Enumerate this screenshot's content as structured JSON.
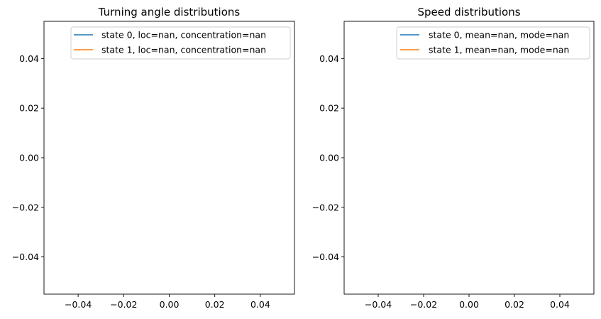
{
  "chart_data": [
    {
      "type": "line",
      "title": "Turning angle distributions",
      "xlabel": "",
      "ylabel": "",
      "xlim": [
        -0.055,
        0.055
      ],
      "ylim": [
        -0.055,
        0.055
      ],
      "xticks": [
        -0.04,
        -0.02,
        0.0,
        0.02,
        0.04
      ],
      "xtick_labels": [
        "−0.04",
        "−0.02",
        "0.00",
        "0.02",
        "0.04"
      ],
      "yticks": [
        0.04,
        0.02,
        0.0,
        -0.02,
        -0.04
      ],
      "ytick_labels": [
        "0.04",
        "0.02",
        "0.00",
        "−0.02",
        "−0.04"
      ],
      "grid": false,
      "legend_position": "top-right",
      "series": [
        {
          "name": "state 0, loc=nan, concentration=nan",
          "color": "#1f77b4",
          "values": []
        },
        {
          "name": "state 1, loc=nan, concentration=nan",
          "color": "#ff7f0e",
          "values": []
        }
      ]
    },
    {
      "type": "line",
      "title": "Speed distributions",
      "xlabel": "",
      "ylabel": "",
      "xlim": [
        -0.055,
        0.055
      ],
      "ylim": [
        -0.055,
        0.055
      ],
      "xticks": [
        -0.04,
        -0.02,
        0.0,
        0.02,
        0.04
      ],
      "xtick_labels": [
        "−0.04",
        "−0.02",
        "0.00",
        "0.02",
        "0.04"
      ],
      "yticks": [
        0.04,
        0.02,
        0.0,
        -0.02,
        -0.04
      ],
      "ytick_labels": [
        "0.04",
        "0.02",
        "0.00",
        "−0.02",
        "−0.04"
      ],
      "grid": false,
      "legend_position": "top-right",
      "series": [
        {
          "name": "state 0, mean=nan, mode=nan",
          "color": "#1f77b4",
          "values": []
        },
        {
          "name": "state 1, mean=nan, mode=nan",
          "color": "#ff7f0e",
          "values": []
        }
      ]
    }
  ]
}
